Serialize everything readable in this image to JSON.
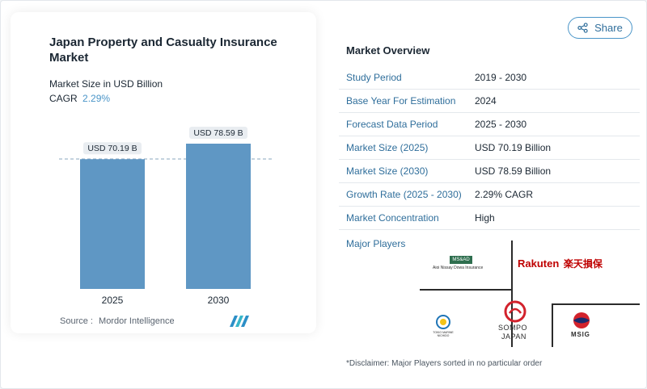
{
  "header": {
    "title": "Japan Property and Casualty Insurance Market",
    "subtitle": "Market Size in USD Billion",
    "cagr_label": "CAGR",
    "cagr_value": "2.29%",
    "share_label": "Share"
  },
  "chart_data": {
    "type": "bar",
    "categories": [
      "2025",
      "2030"
    ],
    "values": [
      70.19,
      78.59
    ],
    "data_labels": [
      "USD 70.19 B",
      "USD 78.59 B"
    ],
    "title": "Japan Property and Casualty Insurance Market",
    "ylabel": "Market Size in USD Billion",
    "bar_color": "#5f97c4",
    "grid": false,
    "legend": "none"
  },
  "source": {
    "label": "Source :",
    "value": "Mordor Intelligence"
  },
  "overview": {
    "title": "Market Overview",
    "rows": [
      {
        "key": "Study Period",
        "value": "2019 - 2030"
      },
      {
        "key": "Base Year For Estimation",
        "value": "2024"
      },
      {
        "key": "Forecast Data Period",
        "value": "2025 - 2030"
      },
      {
        "key": "Market Size (2025)",
        "value": "USD 70.19 Billion"
      },
      {
        "key": "Market Size (2030)",
        "value": "USD 78.59 Billion"
      },
      {
        "key": "Growth Rate (2025 - 2030)",
        "value": "2.29% CAGR"
      },
      {
        "key": "Market Concentration",
        "value": "High"
      }
    ],
    "major_players_label": "Major Players",
    "players": {
      "ms_ad_mark": "MS&AD",
      "aioi": "Aioi Nissay Dowa Insurance",
      "rakuten": "Rakuten",
      "rakuten_jp": "楽天損保",
      "tokio": "TOKIO MARINE NICHIDO",
      "sompo_1": "SOMPO",
      "sompo_2": "JAPAN",
      "msig": "MSIG"
    },
    "disclaimer": "*Disclaimer: Major Players sorted in no particular order"
  },
  "colors": {
    "accent": "#4a95c8",
    "bar": "#5f97c4",
    "rakuten_red": "#bf0000",
    "sompo_red": "#d2222c"
  },
  "icons": [
    "share-icon",
    "mordor-intelligence-logo"
  ]
}
